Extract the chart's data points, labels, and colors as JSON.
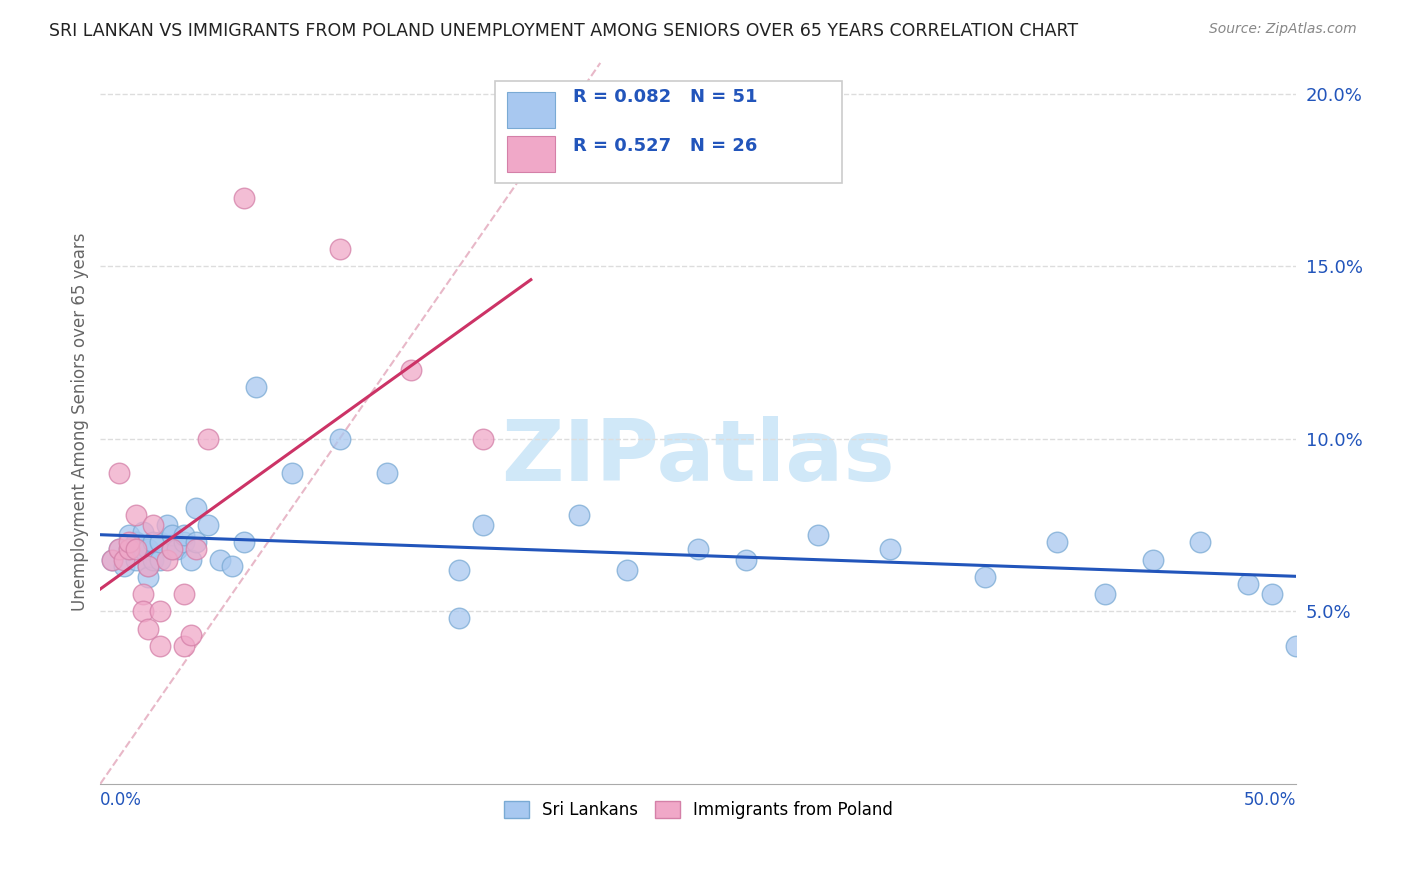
{
  "title": "SRI LANKAN VS IMMIGRANTS FROM POLAND UNEMPLOYMENT AMONG SENIORS OVER 65 YEARS CORRELATION CHART",
  "source": "Source: ZipAtlas.com",
  "ylabel": "Unemployment Among Seniors over 65 years",
  "y_ticks": [
    0.05,
    0.1,
    0.15,
    0.2
  ],
  "y_tick_labels": [
    "5.0%",
    "10.0%",
    "15.0%",
    "20.0%"
  ],
  "xlim": [
    0.0,
    0.5
  ],
  "ylim": [
    0.0,
    0.21
  ],
  "legend1_R": "0.082",
  "legend1_N": "51",
  "legend2_R": "0.527",
  "legend2_N": "26",
  "sri_lankan_color": "#a8c8f0",
  "sri_lankan_edge": "#7aaad4",
  "poland_color": "#f0a8c8",
  "poland_edge": "#d480a8",
  "sri_lankan_line_color": "#2255bb",
  "poland_line_color": "#cc3366",
  "diagonal_color": "#e8b8c8",
  "watermark_color": "#d0e8f8",
  "sri_lankan_x": [
    0.005,
    0.008,
    0.01,
    0.012,
    0.012,
    0.015,
    0.015,
    0.015,
    0.018,
    0.018,
    0.02,
    0.02,
    0.02,
    0.022,
    0.022,
    0.025,
    0.025,
    0.028,
    0.03,
    0.03,
    0.032,
    0.035,
    0.035,
    0.038,
    0.04,
    0.04,
    0.045,
    0.05,
    0.055,
    0.06,
    0.065,
    0.08,
    0.1,
    0.12,
    0.15,
    0.16,
    0.2,
    0.22,
    0.25,
    0.27,
    0.3,
    0.33,
    0.37,
    0.4,
    0.42,
    0.44,
    0.46,
    0.48,
    0.49,
    0.5,
    0.15
  ],
  "sri_lankan_y": [
    0.065,
    0.068,
    0.063,
    0.068,
    0.072,
    0.068,
    0.07,
    0.065,
    0.068,
    0.073,
    0.063,
    0.068,
    0.06,
    0.065,
    0.07,
    0.065,
    0.07,
    0.075,
    0.068,
    0.072,
    0.068,
    0.07,
    0.072,
    0.065,
    0.07,
    0.08,
    0.075,
    0.065,
    0.063,
    0.07,
    0.115,
    0.09,
    0.1,
    0.09,
    0.062,
    0.075,
    0.078,
    0.062,
    0.068,
    0.065,
    0.072,
    0.068,
    0.06,
    0.07,
    0.055,
    0.065,
    0.07,
    0.058,
    0.055,
    0.04,
    0.048
  ],
  "poland_x": [
    0.005,
    0.008,
    0.008,
    0.01,
    0.012,
    0.012,
    0.015,
    0.015,
    0.018,
    0.018,
    0.02,
    0.02,
    0.022,
    0.025,
    0.025,
    0.028,
    0.03,
    0.035,
    0.035,
    0.038,
    0.04,
    0.045,
    0.06,
    0.1,
    0.13,
    0.16
  ],
  "poland_y": [
    0.065,
    0.068,
    0.09,
    0.065,
    0.068,
    0.07,
    0.068,
    0.078,
    0.055,
    0.05,
    0.063,
    0.045,
    0.075,
    0.05,
    0.04,
    0.065,
    0.068,
    0.055,
    0.04,
    0.043,
    0.068,
    0.1,
    0.17,
    0.155,
    0.12,
    0.1
  ]
}
